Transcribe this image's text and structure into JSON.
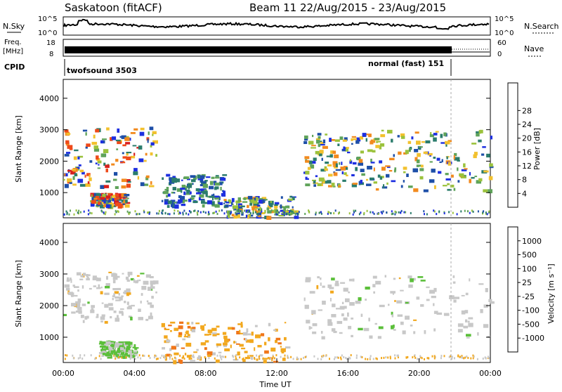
{
  "header": {
    "title": "Saskatoon (fitACF)",
    "beam_date": "Beam 11  22/Aug/2015 - 23/Aug/2015"
  },
  "strip": {
    "nsky_label": "N.Sky",
    "nsearch_label": "N.Search",
    "nsky_ticks": [
      "10^5",
      "10^0"
    ],
    "freq_label_1": "Freq.",
    "freq_label_2": "[MHz]",
    "freq_ticks": [
      "18",
      "8"
    ],
    "nave_label": "Nave",
    "nave_ticks": [
      "60",
      "0"
    ],
    "cpid_label": "CPID",
    "cpid_left": "twofsound 3503",
    "cpid_right": "normal (fast) 151"
  },
  "chart_data": [
    {
      "type": "heatmap",
      "name": "power",
      "ylabel": "Slant Range [km]",
      "yticks": [
        1000,
        2000,
        3000,
        4000
      ],
      "ylim": [
        200,
        4600
      ],
      "xlim": [
        0,
        24
      ],
      "colorbar_label": "Power [dB]",
      "colorbar_ticks": [
        "4",
        "8",
        "12",
        "16",
        "20",
        "24",
        "28"
      ],
      "colorbar_colors": [
        "#1d2fe0",
        "#1e4fa8",
        "#2b7c6c",
        "#5fa35a",
        "#9bc23c",
        "#f2c12e",
        "#f28a1e",
        "#ee4a1a",
        "#d81e1e"
      ],
      "regions": [
        {
          "t0": 0.0,
          "t1": 5.2,
          "r0": 1200,
          "r1": 3100,
          "level": "high"
        },
        {
          "t0": 1.5,
          "t1": 3.5,
          "r0": 600,
          "r1": 1000,
          "level": "high"
        },
        {
          "t0": 5.5,
          "t1": 9.0,
          "r0": 600,
          "r1": 1600,
          "level": "low"
        },
        {
          "t0": 9.0,
          "t1": 13.0,
          "r0": 250,
          "r1": 900,
          "level": "mid"
        },
        {
          "t0": 13.5,
          "t1": 17.5,
          "r0": 1200,
          "r1": 2900,
          "level": "mid"
        },
        {
          "t0": 17.5,
          "t1": 24.0,
          "r0": 1100,
          "r1": 3000,
          "level": "mid"
        }
      ]
    },
    {
      "type": "heatmap",
      "name": "velocity",
      "ylabel": "Slant Range [km]",
      "yticks": [
        1000,
        2000,
        3000,
        4000
      ],
      "ylim": [
        200,
        4600
      ],
      "xlim": [
        0,
        24
      ],
      "xlabel": "Time UT",
      "xticks": [
        "00:00",
        "04:00",
        "08:00",
        "12:00",
        "16:00",
        "20:00",
        "00:00"
      ],
      "colorbar_label": "Velocity [m s⁻¹]",
      "colorbar_ticks": [
        "1000",
        "500",
        "100",
        "25",
        "-25",
        "-100",
        "-500",
        "-1000"
      ],
      "colorbar_colors": [
        "#1d2fe0",
        "#1e4fa8",
        "#2b7c6c",
        "#5bbf3a",
        "#c8c8c8",
        "#f2a81e",
        "#f0761a",
        "#e84a18",
        "#d81e1e"
      ],
      "regions": [
        {
          "t0": 0.0,
          "t1": 5.2,
          "r0": 1500,
          "r1": 3100,
          "level": "grey"
        },
        {
          "t0": 2.0,
          "t1": 4.0,
          "r0": 400,
          "r1": 900,
          "level": "green"
        },
        {
          "t0": 5.5,
          "t1": 12.5,
          "r0": 250,
          "r1": 1500,
          "level": "orange"
        },
        {
          "t0": 13.5,
          "t1": 24.0,
          "r0": 1000,
          "r1": 3000,
          "level": "grey"
        }
      ]
    }
  ]
}
